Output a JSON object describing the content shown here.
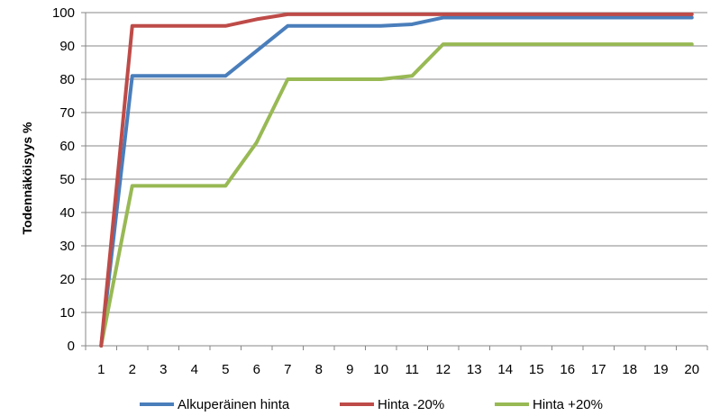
{
  "chart_data": {
    "type": "line",
    "title": "",
    "xlabel": "",
    "ylabel": "Todennäköisyys %",
    "categories": [
      "1",
      "2",
      "3",
      "4",
      "5",
      "6",
      "7",
      "8",
      "9",
      "10",
      "11",
      "12",
      "13",
      "14",
      "15",
      "16",
      "17",
      "18",
      "19",
      "20"
    ],
    "ylim": [
      0,
      100
    ],
    "yticks": [
      "0",
      "10",
      "20",
      "30",
      "40",
      "50",
      "60",
      "70",
      "80",
      "90",
      "100"
    ],
    "grid": "horizontal",
    "legend_position": "bottom",
    "series": [
      {
        "name": "Alkuperäinen hinta",
        "color": "#4a7ebb",
        "values": [
          0,
          81,
          81,
          81,
          81,
          88.5,
          96,
          96,
          96,
          96,
          96.5,
          98.5,
          98.5,
          98.5,
          98.5,
          98.5,
          98.5,
          98.5,
          98.5,
          98.5
        ]
      },
      {
        "name": "Hinta -20%",
        "color": "#be4b48",
        "values": [
          0,
          96,
          96,
          96,
          96,
          98,
          99.5,
          99.5,
          99.5,
          99.5,
          99.5,
          99.5,
          99.5,
          99.5,
          99.5,
          99.5,
          99.5,
          99.5,
          99.5,
          99.5
        ]
      },
      {
        "name": "Hinta +20%",
        "color": "#98b954",
        "values": [
          0,
          48,
          48,
          48,
          48,
          61,
          80,
          80,
          80,
          80,
          81,
          90.5,
          90.5,
          90.5,
          90.5,
          90.5,
          90.5,
          90.5,
          90.5,
          90.5
        ]
      }
    ]
  }
}
